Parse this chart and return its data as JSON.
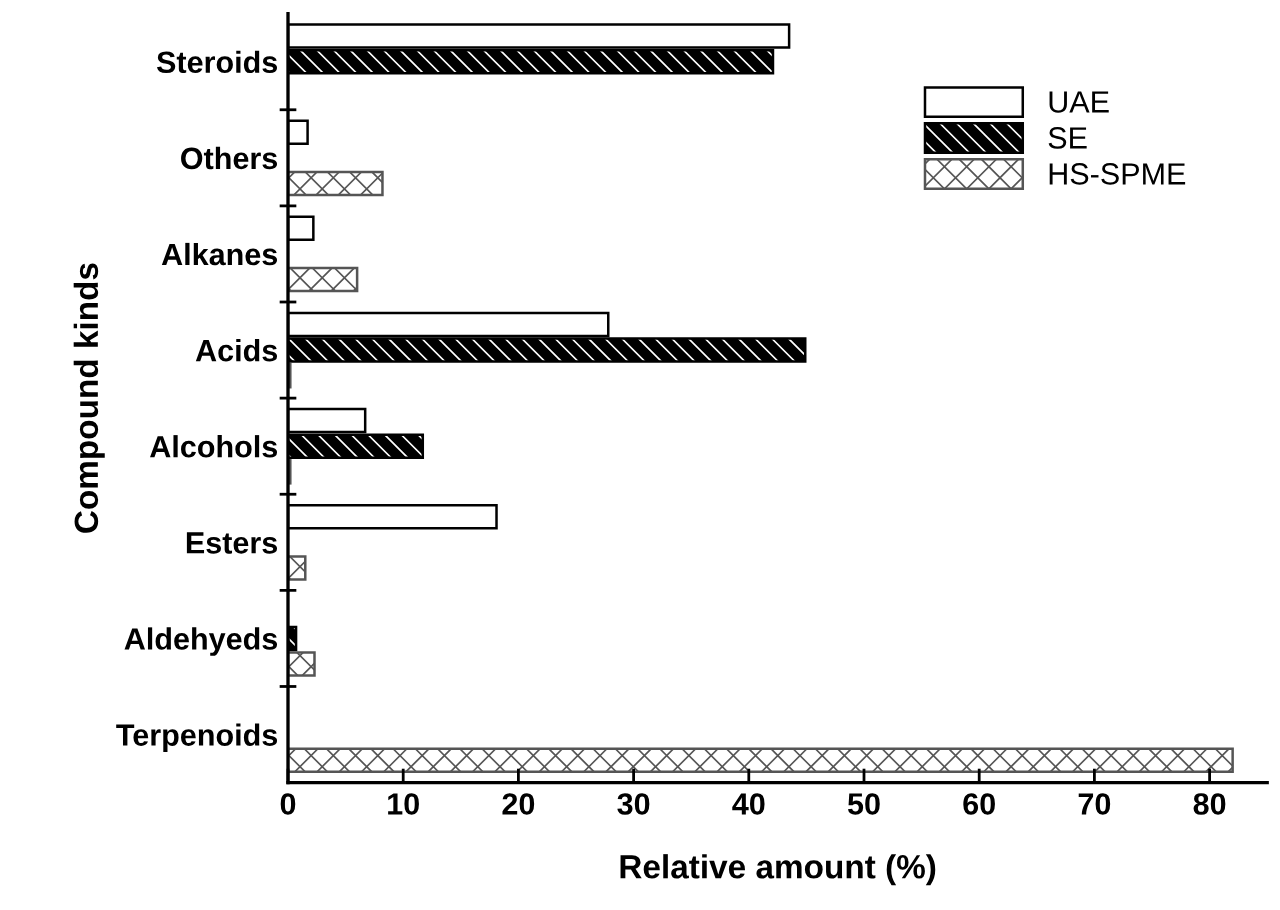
{
  "chart_data": {
    "type": "bar",
    "orientation": "horizontal",
    "xlabel": "Relative amount (%)",
    "ylabel": "Compound kinds",
    "categories": [
      "Steroids",
      "Others",
      "Alkanes",
      "Acids",
      "Alcohols",
      "Esters",
      "Aldehyeds",
      "Terpenoids"
    ],
    "series": [
      {
        "name": "UAE",
        "color": "#ffffff",
        "values": [
          43.5,
          1.7,
          2.2,
          27.8,
          6.7,
          18.1,
          null,
          null
        ]
      },
      {
        "name": "SE",
        "color": "#000000",
        "values": [
          42.1,
          null,
          null,
          44.9,
          11.7,
          null,
          0.7,
          null
        ]
      },
      {
        "name": "HS-SPME",
        "color": "#555555",
        "values": [
          null,
          8.2,
          6.0,
          0.2,
          0.2,
          1.5,
          2.3,
          82.0
        ]
      }
    ],
    "xlim": [
      0,
      85
    ],
    "xticks": [
      0,
      10,
      20,
      30,
      40,
      50,
      60,
      70,
      80
    ],
    "legend": "top right",
    "grid": false
  }
}
